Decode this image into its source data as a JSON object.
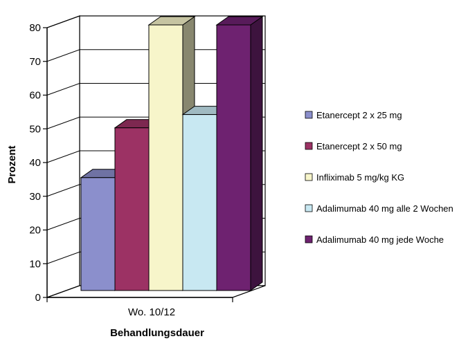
{
  "chart_data": {
    "type": "bar",
    "style": "3d-clustered",
    "categories": [
      "Wo. 10/12"
    ],
    "xlabel": "Behandlungsdauer",
    "ylabel": "Prozent",
    "ylim": [
      0,
      80
    ],
    "yticks": [
      0,
      10,
      20,
      30,
      40,
      50,
      60,
      70,
      80
    ],
    "grid": true,
    "legend_position": "right",
    "series": [
      {
        "name": "Etanercept 2 x 25 mg",
        "values": [
          34
        ],
        "color": "#8B8FCC"
      },
      {
        "name": "Etanercept 2 x 50 mg",
        "values": [
          49
        ],
        "color": "#9C3264"
      },
      {
        "name": "Infliximab 5 mg/kg KG",
        "values": [
          80
        ],
        "color": "#F7F5CA"
      },
      {
        "name": "Adalimumab 40 mg alle 2 Wochen",
        "values": [
          53
        ],
        "color": "#C8E8F2"
      },
      {
        "name": "Adalimumab 40 mg jede Woche",
        "values": [
          80
        ],
        "color": "#6E2270"
      }
    ]
  }
}
